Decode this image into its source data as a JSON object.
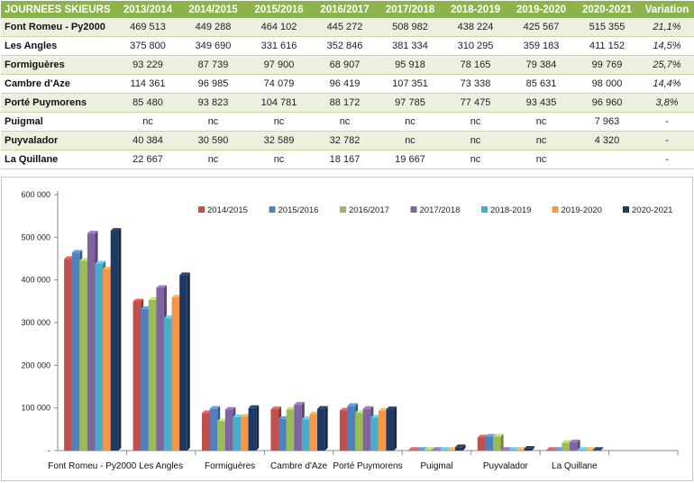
{
  "table": {
    "headers": [
      "JOURNEES SKIEURS",
      "2013/2014",
      "2014/2015",
      "2015/2016",
      "2016/2017",
      "2017/2018",
      "2018-2019",
      "2019-2020",
      "2020-2021",
      "Variation"
    ],
    "rows": [
      [
        "Font Romeu - Py2000",
        "469 513",
        "449 288",
        "464 102",
        "445 272",
        "508 982",
        "438 224",
        "425 567",
        "515 355",
        "21,1%"
      ],
      [
        "Les Angles",
        "375 800",
        "349 690",
        "331 616",
        "352 846",
        "381 334",
        "310 295",
        "359 183",
        "411 152",
        "14,5%"
      ],
      [
        "Formiguères",
        "93 229",
        "87 739",
        "97 900",
        "68 907",
        "95 918",
        "78 165",
        "79 384",
        "99 769",
        "25,7%"
      ],
      [
        "Cambre d'Aze",
        "114 361",
        "96 985",
        "74 079",
        "96 419",
        "107 351",
        "73 338",
        "85 631",
        "98 000",
        "14,4%"
      ],
      [
        "Porté Puymorens",
        "85 480",
        "93 823",
        "104 781",
        "88 172",
        "97 785",
        "77 475",
        "93 435",
        "96 960",
        "3,8%"
      ],
      [
        "Puigmal",
        "nc",
        "nc",
        "nc",
        "nc",
        "nc",
        "nc",
        "nc",
        "7 963",
        "-"
      ],
      [
        "Puyvalador",
        "40 384",
        "30 590",
        "32 589",
        "32 782",
        "nc",
        "nc",
        "nc",
        "4 320",
        "-"
      ],
      [
        "La Quillane",
        "22 667",
        "nc",
        "nc",
        "18 167",
        "19 667",
        "nc",
        "nc",
        "",
        "-"
      ]
    ]
  },
  "chart_data": {
    "type": "bar",
    "title": "",
    "xlabel": "",
    "ylabel": "",
    "ylim": [
      0,
      600000
    ],
    "yticks": [
      0,
      100000,
      200000,
      300000,
      400000,
      500000,
      600000
    ],
    "ytick_labels": [
      "-",
      "100 000",
      "200 000",
      "300 000",
      "400 000",
      "500 000",
      "600 000"
    ],
    "grid": false,
    "legend_position": "top-right",
    "categories": [
      "Font Romeu - Py2000",
      "Les Angles",
      "Formiguères",
      "Cambre d'Aze",
      "Porté Puymorens",
      "Puigmal",
      "Puyvalador",
      "La Quillane",
      ""
    ],
    "series": [
      {
        "name": "2014/2015",
        "color": "#c0504d",
        "values": [
          449288,
          349690,
          87739,
          96985,
          93823,
          0,
          30590,
          0,
          0
        ]
      },
      {
        "name": "2015/2016",
        "color": "#4f81bd",
        "values": [
          464102,
          331616,
          97900,
          74079,
          104781,
          0,
          32589,
          0,
          0
        ]
      },
      {
        "name": "2016/2017",
        "color": "#9bbb59",
        "values": [
          445272,
          352846,
          68907,
          96419,
          88172,
          0,
          32782,
          18167,
          0
        ]
      },
      {
        "name": "2017/2018",
        "color": "#8064a2",
        "values": [
          508982,
          381334,
          95918,
          107351,
          97785,
          0,
          0,
          19667,
          0
        ]
      },
      {
        "name": "2018-2019",
        "color": "#4bacc6",
        "values": [
          438224,
          310295,
          78165,
          73338,
          77475,
          0,
          0,
          0,
          0
        ]
      },
      {
        "name": "2019-2020",
        "color": "#f79646",
        "values": [
          425567,
          359183,
          79384,
          85631,
          93435,
          0,
          0,
          0,
          0
        ]
      },
      {
        "name": "2020-2021",
        "color": "#1f3864",
        "values": [
          515355,
          411152,
          99769,
          98000,
          96960,
          7963,
          4320,
          0,
          0
        ]
      }
    ]
  }
}
